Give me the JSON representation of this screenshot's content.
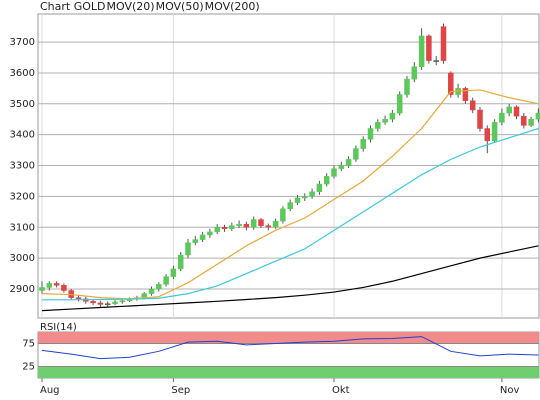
{
  "chart_data": [
    {
      "type": "candlestick",
      "name": "Chart GOLD",
      "color": "#b03a2e",
      "up_color": "#5cc85c",
      "down_color": "#e04545",
      "categories": [
        "Aug",
        null,
        null,
        null,
        null,
        null,
        null,
        null,
        null,
        null,
        null,
        null,
        null,
        null,
        null,
        null,
        null,
        null,
        "Sep",
        null,
        null,
        null,
        null,
        null,
        null,
        null,
        null,
        null,
        null,
        null,
        null,
        null,
        null,
        null,
        null,
        null,
        null,
        null,
        null,
        null,
        "Okt",
        null,
        null,
        null,
        null,
        null,
        null,
        null,
        null,
        null,
        null,
        null,
        null,
        null,
        null,
        null,
        null,
        null,
        null,
        null,
        null,
        null,
        null,
        "Nov",
        null,
        null,
        null,
        null,
        null
      ],
      "open": [
        2895,
        2905,
        2918,
        2912,
        2895,
        2872,
        2868,
        2860,
        2855,
        2850,
        2852,
        2858,
        2862,
        2868,
        2872,
        2885,
        2900,
        2915,
        2940,
        2965,
        3010,
        3050,
        3060,
        3075,
        3085,
        3100,
        3095,
        3105,
        3110,
        3100,
        3125,
        3105,
        3100,
        3120,
        3160,
        3180,
        3195,
        3200,
        3215,
        3240,
        3265,
        3290,
        3300,
        3320,
        3355,
        3385,
        3420,
        3440,
        3450,
        3470,
        3530,
        3580,
        3620,
        3720,
        3640,
        3750,
        3600,
        3530,
        3550,
        3510,
        3480,
        3420,
        3380,
        3440,
        3470,
        3490,
        3460,
        3430,
        3450
      ],
      "high": [
        2925,
        2925,
        2925,
        2918,
        2900,
        2880,
        2875,
        2866,
        2862,
        2860,
        2864,
        2868,
        2872,
        2878,
        2890,
        2908,
        2922,
        2948,
        2975,
        3020,
        3062,
        3072,
        3085,
        3095,
        3110,
        3108,
        3115,
        3122,
        3118,
        3135,
        3130,
        3112,
        3128,
        3168,
        3190,
        3205,
        3210,
        3225,
        3250,
        3275,
        3300,
        3312,
        3330,
        3365,
        3395,
        3430,
        3450,
        3462,
        3480,
        3540,
        3590,
        3635,
        3745,
        3725,
        3655,
        3760,
        3605,
        3565,
        3555,
        3520,
        3490,
        3430,
        3450,
        3485,
        3500,
        3495,
        3470,
        3458,
        3485
      ],
      "low": [
        2885,
        2895,
        2905,
        2888,
        2865,
        2860,
        2852,
        2848,
        2842,
        2843,
        2848,
        2852,
        2858,
        2862,
        2866,
        2878,
        2892,
        2908,
        2932,
        2958,
        3000,
        3042,
        3052,
        3066,
        3078,
        3085,
        3088,
        3098,
        3090,
        3092,
        3098,
        3090,
        3095,
        3112,
        3152,
        3172,
        3185,
        3192,
        3205,
        3232,
        3258,
        3282,
        3292,
        3312,
        3345,
        3375,
        3410,
        3432,
        3440,
        3462,
        3520,
        3570,
        3610,
        3630,
        3625,
        3630,
        3520,
        3520,
        3500,
        3470,
        3410,
        3340,
        3375,
        3430,
        3460,
        3450,
        3420,
        3425,
        3440
      ],
      "close": [
        2905,
        2918,
        2912,
        2895,
        2872,
        2868,
        2860,
        2855,
        2850,
        2852,
        2858,
        2862,
        2868,
        2872,
        2885,
        2900,
        2915,
        2940,
        2965,
        3010,
        3050,
        3060,
        3075,
        3085,
        3100,
        3095,
        3105,
        3110,
        3100,
        3125,
        3105,
        3100,
        3120,
        3160,
        3180,
        3195,
        3200,
        3215,
        3240,
        3265,
        3290,
        3300,
        3320,
        3355,
        3385,
        3420,
        3440,
        3450,
        3470,
        3530,
        3580,
        3620,
        3720,
        3640,
        3640,
        3640,
        3530,
        3550,
        3510,
        3480,
        3420,
        3380,
        3440,
        3470,
        3490,
        3460,
        3430,
        3450,
        3470
      ],
      "series": [
        {
          "name": "MOV(20)",
          "color": "#e8a838",
          "x": [
            0,
            4,
            8,
            12,
            16,
            20,
            24,
            28,
            32,
            36,
            40,
            44,
            48,
            52,
            56,
            60,
            64,
            68
          ],
          "values": [
            2885,
            2882,
            2872,
            2868,
            2875,
            2920,
            2980,
            3040,
            3090,
            3130,
            3190,
            3250,
            3330,
            3420,
            3540,
            3545,
            3520,
            3500
          ]
        },
        {
          "name": "MOV(50)",
          "color": "#3cc8dc",
          "x": [
            0,
            4,
            8,
            12,
            16,
            20,
            24,
            28,
            32,
            36,
            40,
            44,
            48,
            52,
            56,
            60,
            64,
            68
          ],
          "values": [
            2865,
            2865,
            2866,
            2867,
            2870,
            2885,
            2910,
            2950,
            2990,
            3030,
            3090,
            3150,
            3210,
            3270,
            3320,
            3360,
            3390,
            3420
          ]
        },
        {
          "name": "MOV(200)",
          "color": "#000000",
          "x": [
            0,
            4,
            8,
            12,
            16,
            20,
            24,
            28,
            32,
            36,
            40,
            44,
            48,
            52,
            56,
            60,
            64,
            68
          ],
          "values": [
            2830,
            2835,
            2840,
            2845,
            2850,
            2855,
            2860,
            2866,
            2872,
            2880,
            2890,
            2905,
            2925,
            2950,
            2975,
            3000,
            3020,
            3040
          ]
        }
      ],
      "ylim": [
        2806,
        3791
      ],
      "yticks": [
        2900,
        3000,
        3100,
        3200,
        3300,
        3400,
        3500,
        3600,
        3700
      ],
      "grid": true
    },
    {
      "type": "line",
      "title": "RSI(14)",
      "band_colors": [
        "#6fcf6f",
        "#f28b8b"
      ],
      "series": [
        {
          "color": "#2040d0",
          "x": [
            0,
            4,
            8,
            12,
            16,
            20,
            24,
            28,
            32,
            36,
            40,
            44,
            48,
            52,
            56,
            60,
            64,
            68
          ],
          "values": [
            60,
            52,
            42,
            45,
            58,
            78,
            80,
            72,
            75,
            78,
            80,
            85,
            86,
            90,
            58,
            48,
            52,
            50
          ]
        }
      ],
      "ylim": [
        0,
        100
      ],
      "yticks": [
        25,
        75
      ],
      "grid": true
    }
  ]
}
